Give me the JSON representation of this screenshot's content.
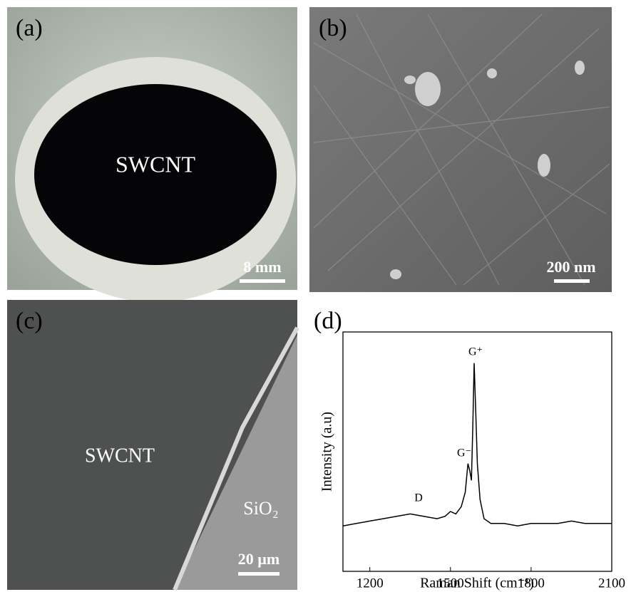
{
  "panels": [
    {
      "label": "(a)",
      "annotation": "SWCNT",
      "scale_bar": "8 mm"
    },
    {
      "label": "(b)",
      "scale_bar": "200 nm"
    },
    {
      "label": "(c)",
      "annotations": [
        "SWCNT",
        "SiO₂"
      ],
      "scale_bar": "20 µm"
    }
  ],
  "chart_data": {
    "type": "line",
    "label": "(d)",
    "xlabel": "Raman Shift (cm⁻¹)",
    "ylabel": "Intensity (a.u)",
    "xlim": [
      1100,
      2100
    ],
    "xticks": [
      1200,
      1500,
      1800,
      2100
    ],
    "ylim": [
      0,
      100
    ],
    "annotations": [
      "G⁺",
      "G⁻",
      "D"
    ],
    "series": [
      {
        "color": "#000000",
        "x": [
          1100,
          1150,
          1200,
          1250,
          1300,
          1350,
          1400,
          1450,
          1480,
          1500,
          1520,
          1540,
          1555,
          1565,
          1572,
          1578,
          1583,
          1588,
          1593,
          1600,
          1610,
          1625,
          1650,
          1700,
          1750,
          1800,
          1850,
          1900,
          1950,
          2000,
          2050,
          2100
        ],
        "values": [
          19,
          20,
          21,
          22,
          23,
          24,
          23,
          22,
          23,
          25,
          24,
          27,
          33,
          45,
          42,
          38,
          60,
          87,
          70,
          45,
          30,
          22,
          20,
          20,
          19,
          20,
          20,
          20,
          21,
          20,
          20,
          20
        ]
      }
    ]
  }
}
